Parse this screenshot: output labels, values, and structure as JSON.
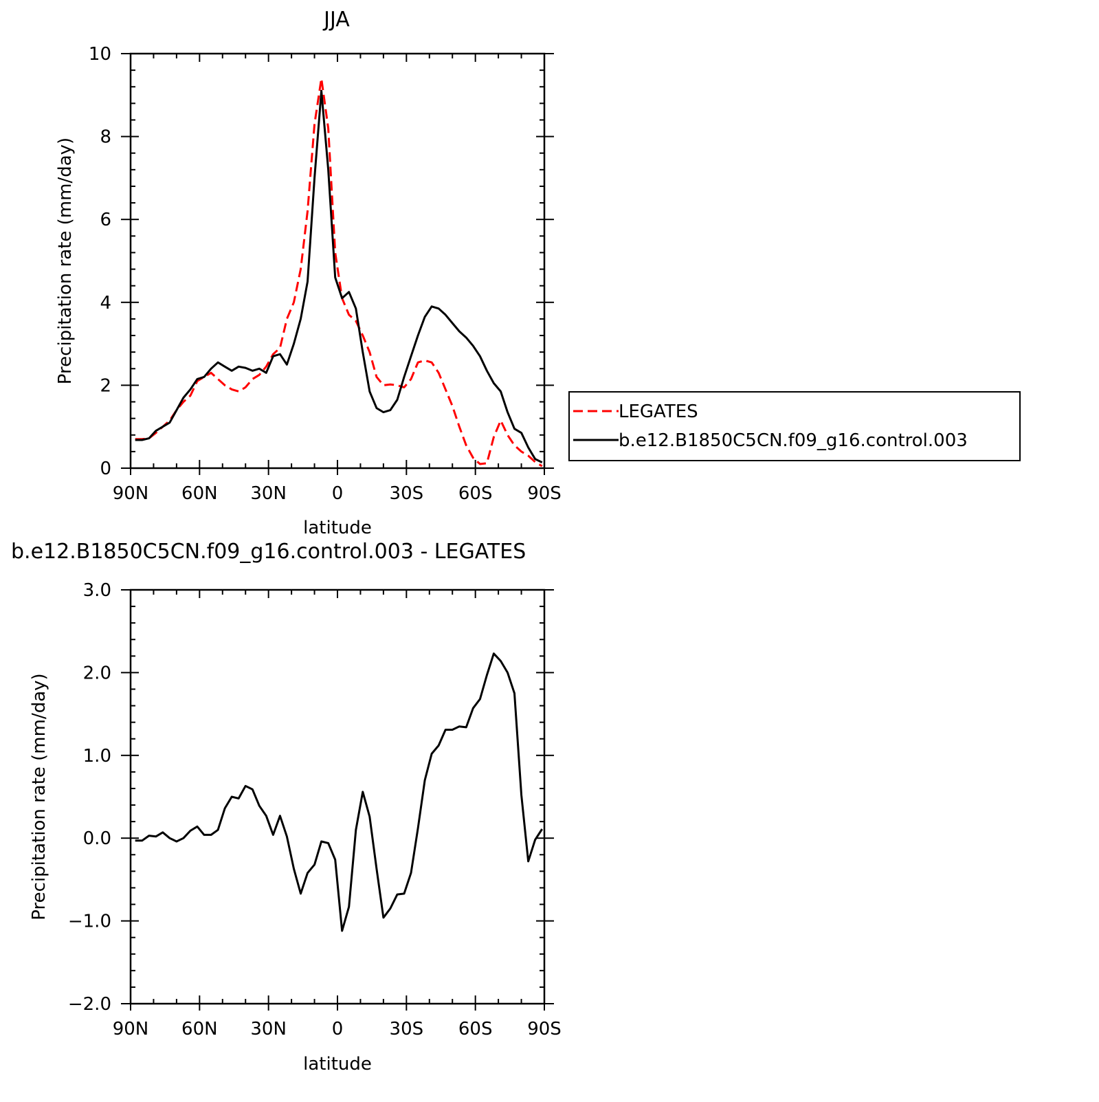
{
  "chart_data": [
    {
      "type": "line",
      "title": "JJA",
      "xlabel": "latitude",
      "ylabel": "Precipitation rate (mm/day)",
      "xlim": [
        90,
        -90
      ],
      "ylim": [
        0,
        10
      ],
      "xticks": [
        90,
        60,
        30,
        0,
        -30,
        -60,
        -90
      ],
      "xtick_labels": [
        "90N",
        "60N",
        "30N",
        "0",
        "30S",
        "60S",
        "90S"
      ],
      "yticks": [
        0,
        2,
        4,
        6,
        8,
        10
      ],
      "ytick_labels": [
        "0",
        "2",
        "4",
        "6",
        "8",
        "10"
      ],
      "legend_position": "right",
      "series": [
        {
          "name": "LEGATES",
          "color": "#ff0000",
          "dash": "dashed",
          "x": [
            88,
            85,
            82,
            79,
            76,
            73,
            70,
            67,
            64,
            61,
            58,
            55,
            52,
            49,
            46,
            43,
            40,
            37,
            34,
            31,
            28,
            25,
            22,
            19,
            16,
            13,
            10,
            7,
            4,
            1,
            -2,
            -5,
            -8,
            -11,
            -14,
            -17,
            -20,
            -23,
            -26,
            -29,
            -32,
            -35,
            -38,
            -41,
            -44,
            -47,
            -50,
            -53,
            -56,
            -59,
            -62,
            -65,
            -68,
            -71,
            -74,
            -77,
            -80,
            -83,
            -86,
            -89
          ],
          "y": [
            0.7,
            0.7,
            0.72,
            0.85,
            1.0,
            1.15,
            1.4,
            1.6,
            1.75,
            2.1,
            2.2,
            2.3,
            2.15,
            2.0,
            1.9,
            1.85,
            1.95,
            2.15,
            2.25,
            2.45,
            2.75,
            2.9,
            3.6,
            4.0,
            4.8,
            6.2,
            8.3,
            9.4,
            8.2,
            5.2,
            4.1,
            3.7,
            3.55,
            3.2,
            2.8,
            2.2,
            2.0,
            2.02,
            2.0,
            1.95,
            2.15,
            2.55,
            2.6,
            2.55,
            2.3,
            1.9,
            1.5,
            1.0,
            0.55,
            0.25,
            0.1,
            0.12,
            0.75,
            1.15,
            0.8,
            0.55,
            0.4,
            0.3,
            0.15,
            0.05
          ]
        },
        {
          "name": "b.e12.B1850C5CN.f09_g16.control.003",
          "color": "#000000",
          "dash": "solid",
          "x": [
            88,
            85,
            82,
            79,
            76,
            73,
            70,
            67,
            64,
            61,
            58,
            55,
            52,
            49,
            46,
            43,
            40,
            37,
            34,
            31,
            28,
            25,
            22,
            19,
            16,
            13,
            10,
            7,
            4,
            1,
            -2,
            -5,
            -8,
            -11,
            -14,
            -17,
            -20,
            -23,
            -26,
            -29,
            -32,
            -35,
            -38,
            -41,
            -44,
            -47,
            -50,
            -53,
            -56,
            -59,
            -62,
            -65,
            -68,
            -71,
            -74,
            -77,
            -80,
            -83,
            -86,
            -89
          ],
          "y": [
            0.68,
            0.68,
            0.72,
            0.9,
            1.0,
            1.1,
            1.4,
            1.7,
            1.9,
            2.15,
            2.2,
            2.4,
            2.55,
            2.45,
            2.35,
            2.45,
            2.42,
            2.35,
            2.4,
            2.3,
            2.7,
            2.75,
            2.5,
            3.0,
            3.6,
            4.5,
            7.0,
            9.1,
            7.2,
            4.6,
            4.1,
            4.25,
            3.85,
            2.8,
            1.85,
            1.45,
            1.35,
            1.4,
            1.65,
            2.2,
            2.7,
            3.2,
            3.65,
            3.9,
            3.85,
            3.7,
            3.5,
            3.3,
            3.15,
            2.95,
            2.7,
            2.35,
            2.05,
            1.85,
            1.35,
            0.95,
            0.85,
            0.5,
            0.22,
            0.14
          ]
        }
      ]
    },
    {
      "type": "line",
      "title": "b.e12.B1850C5CN.f09_g16.control.003 - LEGATES",
      "xlabel": "latitude",
      "ylabel": "Precipitation rate (mm/day)",
      "xlim": [
        90,
        -90
      ],
      "ylim": [
        -2.0,
        3.0
      ],
      "xticks": [
        90,
        60,
        30,
        0,
        -30,
        -60,
        -90
      ],
      "xtick_labels": [
        "90N",
        "60N",
        "30N",
        "0",
        "30S",
        "60S",
        "90S"
      ],
      "yticks": [
        -2.0,
        -1.0,
        0.0,
        1.0,
        2.0,
        3.0
      ],
      "ytick_labels": [
        "−2.0",
        "−1.0",
        "0.0",
        "1.0",
        "2.0",
        "3.0"
      ],
      "series": [
        {
          "color": "#000000",
          "dash": "solid",
          "x": [
            88,
            85,
            82,
            79,
            76,
            73,
            70,
            67,
            64,
            61,
            58,
            55,
            52,
            49,
            46,
            43,
            40,
            37,
            34,
            31,
            28,
            25,
            22,
            19,
            16,
            13,
            10,
            7,
            4,
            1,
            -2,
            -5,
            -8,
            -11,
            -14,
            -17,
            -20,
            -23,
            -26,
            -29,
            -32,
            -35,
            -38,
            -41,
            -44,
            -47,
            -50,
            -53,
            -56,
            -59,
            -62,
            -65,
            -68,
            -71,
            -74,
            -77,
            -80,
            -83,
            -86,
            -89
          ],
          "y": [
            -0.03,
            -0.03,
            0.03,
            0.02,
            0.07,
            0.0,
            -0.04,
            0.0,
            0.09,
            0.14,
            0.04,
            0.04,
            0.1,
            0.36,
            0.5,
            0.48,
            0.63,
            0.59,
            0.39,
            0.27,
            0.04,
            0.27,
            0.02,
            -0.37,
            -0.67,
            -0.42,
            -0.32,
            -0.04,
            -0.06,
            -0.26,
            -1.12,
            -0.83,
            0.1,
            0.56,
            0.26,
            -0.37,
            -0.96,
            -0.85,
            -0.68,
            -0.67,
            -0.42,
            0.12,
            0.7,
            1.02,
            1.12,
            1.31,
            1.31,
            1.35,
            1.34,
            1.57,
            1.68,
            1.97,
            2.23,
            2.14,
            2.0,
            1.75,
            0.52,
            -0.28,
            -0.02,
            0.11
          ]
        }
      ]
    }
  ]
}
